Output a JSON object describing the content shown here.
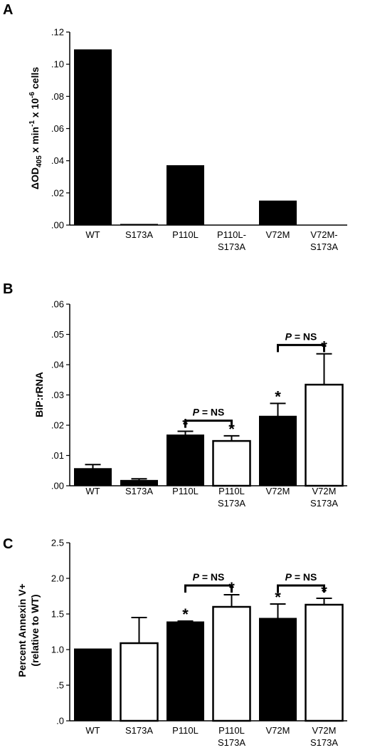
{
  "chart_data": [
    {
      "panel": "A",
      "type": "bar",
      "ylabel": "ΔOD405 x min-1 x 10-6 cells",
      "ylim": [
        0,
        0.12
      ],
      "yticks": [
        {
          "value": 0.0,
          "label": ".00"
        },
        {
          "value": 0.02,
          "label": ".02"
        },
        {
          "value": 0.04,
          "label": ".04"
        },
        {
          "value": 0.06,
          "label": ".06"
        },
        {
          "value": 0.08,
          "label": ".08"
        },
        {
          "value": 0.1,
          "label": ".10"
        },
        {
          "value": 0.12,
          "label": ".12"
        }
      ],
      "categories": [
        [
          "WT"
        ],
        [
          "S173A"
        ],
        [
          "P110L"
        ],
        [
          "P110L-",
          "S173A"
        ],
        [
          "V72M"
        ],
        [
          "V72M-",
          "S173A"
        ]
      ],
      "values": [
        0.109,
        0.0005,
        0.037,
        0.0,
        0.015,
        0.0
      ],
      "fill": [
        "black",
        "black",
        "black",
        "black",
        "black",
        "black"
      ],
      "errors": [],
      "stars": [],
      "brackets": []
    },
    {
      "panel": "B",
      "type": "bar",
      "ylabel": "BiP:rRNA",
      "ylim": [
        0,
        0.06
      ],
      "yticks": [
        {
          "value": 0.0,
          "label": ".00"
        },
        {
          "value": 0.01,
          "label": ".01"
        },
        {
          "value": 0.02,
          "label": ".02"
        },
        {
          "value": 0.03,
          "label": ".03"
        },
        {
          "value": 0.04,
          "label": ".04"
        },
        {
          "value": 0.05,
          "label": ".05"
        },
        {
          "value": 0.06,
          "label": ".06"
        }
      ],
      "categories": [
        [
          "WT"
        ],
        [
          "S173A"
        ],
        [
          "P110L"
        ],
        [
          "P110L",
          "S173A"
        ],
        [
          "V72M"
        ],
        [
          "V72M",
          "S173A"
        ]
      ],
      "values": [
        0.0057,
        0.0018,
        0.0168,
        0.0148,
        0.023,
        0.0334
      ],
      "errors": [
        0.0013,
        0.0005,
        0.0012,
        0.0017,
        0.0042,
        0.0102
      ],
      "fill": [
        "black",
        "black",
        "black",
        "white",
        "black",
        "white"
      ],
      "stars": [
        false,
        false,
        true,
        true,
        true,
        true
      ],
      "brackets": [
        {
          "from": 2,
          "to": 3,
          "y": 0.0215,
          "label_italic": "P",
          "label_rest": " = NS"
        },
        {
          "from": 4,
          "to": 5,
          "y": 0.0465,
          "label_italic": "P",
          "label_rest": " = NS"
        }
      ]
    },
    {
      "panel": "C",
      "type": "bar",
      "ylabel": "Percent Annexin V+",
      "ylabel2": "(relative to WT)",
      "ylim": [
        0,
        2.5
      ],
      "yticks": [
        {
          "value": 0.0,
          "label": ".0"
        },
        {
          "value": 0.5,
          "label": ".5"
        },
        {
          "value": 1.0,
          "label": "1.0"
        },
        {
          "value": 1.5,
          "label": "1.5"
        },
        {
          "value": 2.0,
          "label": "2.0"
        },
        {
          "value": 2.5,
          "label": "2.5"
        }
      ],
      "categories": [
        [
          "WT"
        ],
        [
          "S173A"
        ],
        [
          "P110L"
        ],
        [
          "P110L",
          "S173A"
        ],
        [
          "V72M"
        ],
        [
          "V72M",
          "S173A"
        ]
      ],
      "values": [
        1.01,
        1.09,
        1.39,
        1.6,
        1.44,
        1.63
      ],
      "errors": [
        0,
        0.36,
        0.01,
        0.17,
        0.2,
        0.09
      ],
      "fill": [
        "black",
        "white",
        "black",
        "white",
        "black",
        "white"
      ],
      "stars": [
        false,
        false,
        true,
        true,
        true,
        true
      ],
      "brackets": [
        {
          "from": 2,
          "to": 3,
          "y": 1.9,
          "label_italic": "P",
          "label_rest": " = NS"
        },
        {
          "from": 4,
          "to": 5,
          "y": 1.9,
          "label_italic": "P",
          "label_rest": " = NS"
        }
      ]
    }
  ]
}
